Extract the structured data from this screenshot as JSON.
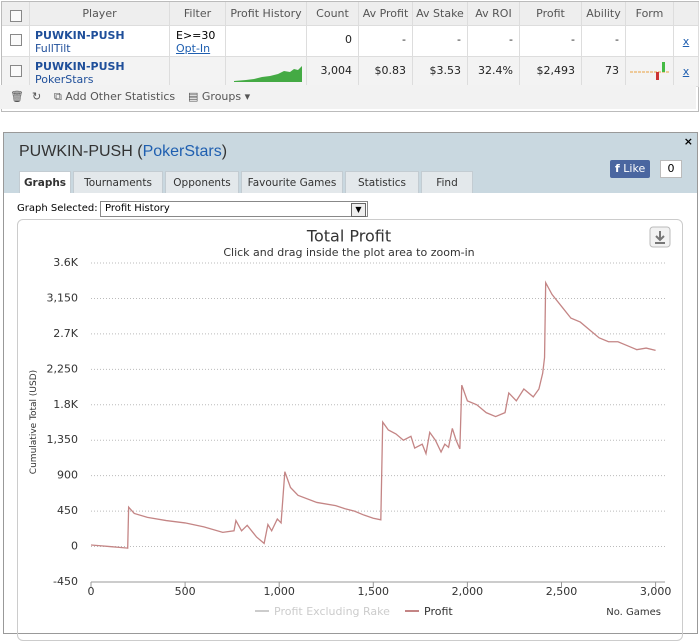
{
  "table": {
    "columns": [
      "Player",
      "Filter",
      "Profit History",
      "Count",
      "Av Profit",
      "Av Stake",
      "Av ROI",
      "Profit",
      "Ability",
      "Form"
    ],
    "rows": [
      {
        "player": "PUWKIN-PUSH",
        "site": "FullTilt",
        "filter": "E>=30",
        "filter_link": "Opt-In",
        "count": "0",
        "av_profit": "-",
        "av_stake": "-",
        "av_roi": "-",
        "profit": "-",
        "ability": "-",
        "remove": "x"
      },
      {
        "player": "PUWKIN-PUSH",
        "site": "PokerStars",
        "count": "3,004",
        "av_profit": "$0.83",
        "av_stake": "$3.53",
        "av_roi": "32.4%",
        "profit": "$2,493",
        "ability": "73",
        "remove": "x"
      }
    ]
  },
  "toolbar": {
    "add_stats": "Add Other Statistics",
    "groups": "Groups"
  },
  "panel": {
    "title": "PUWKIN-PUSH (",
    "site": "PokerStars",
    "title_end": ")",
    "like": "Like",
    "like_count": "0",
    "tabs": [
      "Graphs",
      "Tournaments",
      "Opponents",
      "Favourite Games",
      "Statistics",
      "Find"
    ],
    "graph_selected_label": "Graph Selected:",
    "graph_selected": "Profit History"
  },
  "chart_data": {
    "type": "line",
    "title": "Total Profit",
    "subtitle": "Click and drag inside the plot area to zoom-in",
    "y_label": "Cumulative Total (USD)",
    "x_label": "No. Games",
    "x": [
      0,
      50,
      100,
      150,
      195,
      200,
      230,
      300,
      400,
      500,
      600,
      700,
      760,
      770,
      800,
      830,
      880,
      920,
      940,
      960,
      990,
      1010,
      1030,
      1060,
      1100,
      1200,
      1300,
      1350,
      1400,
      1450,
      1500,
      1540,
      1550,
      1580,
      1620,
      1660,
      1700,
      1720,
      1760,
      1780,
      1800,
      1830,
      1860,
      1880,
      1900,
      1920,
      1940,
      1960,
      1970,
      2000,
      2050,
      2100,
      2150,
      2200,
      2220,
      2260,
      2300,
      2350,
      2380,
      2400,
      2410,
      2416,
      2450,
      2500,
      2550,
      2600,
      2650,
      2700,
      2750,
      2800,
      2850,
      2900,
      2950,
      3000
    ],
    "series": [
      {
        "name": "Profit Excluding Rake",
        "color": "#cccccc",
        "visible": false
      },
      {
        "name": "Profit",
        "color": "#c48585",
        "visible": true,
        "values": [
          20,
          10,
          0,
          -10,
          -20,
          500,
          420,
          370,
          330,
          300,
          250,
          180,
          200,
          330,
          200,
          270,
          120,
          40,
          280,
          200,
          350,
          300,
          950,
          750,
          650,
          560,
          520,
          480,
          450,
          400,
          360,
          340,
          1580,
          1480,
          1430,
          1350,
          1400,
          1250,
          1300,
          1180,
          1450,
          1350,
          1200,
          1300,
          1260,
          1500,
          1350,
          1240,
          2050,
          1850,
          1800,
          1700,
          1650,
          1700,
          1950,
          1850,
          2000,
          1900,
          2000,
          2200,
          2400,
          3350,
          3200,
          3050,
          2900,
          2850,
          2750,
          2650,
          2600,
          2600,
          2550,
          2500,
          2520,
          2490
        ]
      }
    ],
    "xlim": [
      0,
      3050
    ],
    "xticks": [
      0,
      500,
      {
        "value": 1000,
        "label": "1,000"
      },
      {
        "value": 1500,
        "label": "1,500"
      },
      {
        "value": 2000,
        "label": "2,000"
      },
      {
        "value": 2500,
        "label": "2,500"
      },
      {
        "value": 3000,
        "label": "3,000"
      }
    ],
    "ylim": [
      -450,
      3600
    ],
    "yticks": [
      -450,
      0,
      450,
      900,
      {
        "value": 1350,
        "label": "1,350"
      },
      {
        "value": 1800,
        "label": "1.8K"
      },
      {
        "value": 2250,
        "label": "2,250"
      },
      {
        "value": 2700,
        "label": "2.7K"
      },
      {
        "value": 3150,
        "label": "3,150"
      },
      {
        "value": 3600,
        "label": "3.6K"
      }
    ],
    "grid": true
  }
}
